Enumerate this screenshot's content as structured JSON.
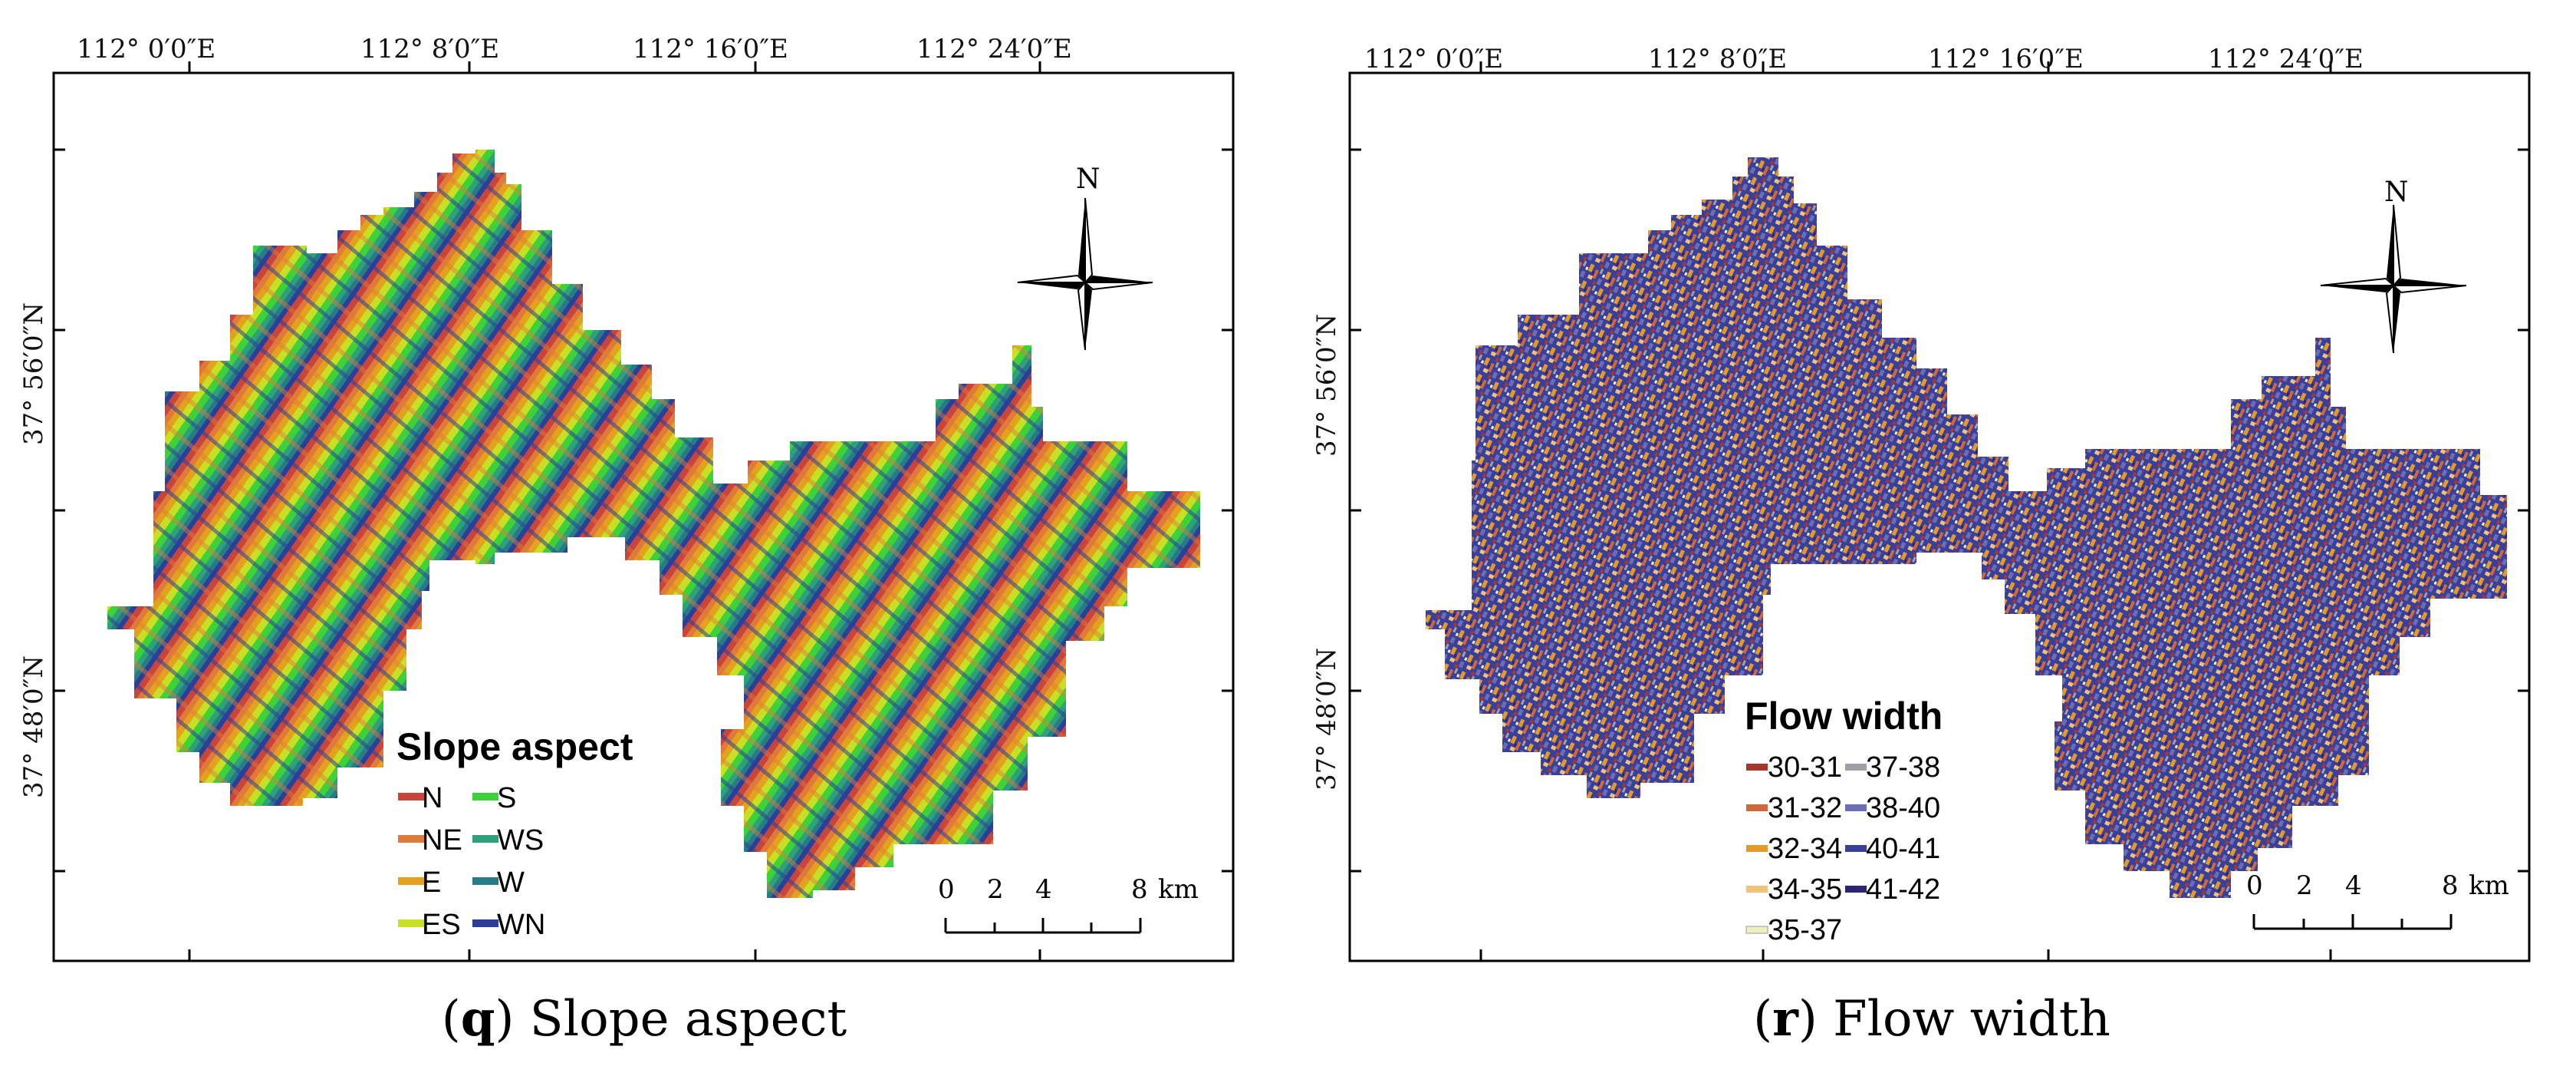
{
  "figure": {
    "panels": [
      {
        "id": "q",
        "caption_letter": "q",
        "caption_text": " Slope aspect",
        "lon_ticks": [
          "112° 0′0″E",
          "112° 8′0″E",
          "112° 16′0″E",
          "112° 24′0″E"
        ],
        "lat_ticks": [
          "37° 56′0″N",
          "37° 48′0″N"
        ],
        "north_label": "N",
        "scale_labels": [
          "0",
          "2",
          "4",
          "8",
          "km"
        ],
        "legend": {
          "title": "Slope aspect",
          "items": [
            {
              "label": "N",
              "color": "#c8453c"
            },
            {
              "label": "NE",
              "color": "#e07a3a"
            },
            {
              "label": "E",
              "color": "#e3a21d"
            },
            {
              "label": "ES",
              "color": "#c7df25"
            },
            {
              "label": "S",
              "color": "#3fd13a"
            },
            {
              "label": "WS",
              "color": "#2ea07a"
            },
            {
              "label": "W",
              "color": "#287a86"
            },
            {
              "label": "WN",
              "color": "#2b3f98"
            }
          ]
        }
      },
      {
        "id": "r",
        "caption_letter": "r",
        "caption_text": " Flow width",
        "lon_ticks": [
          "112° 0′0″E",
          "112° 8′0″E",
          "112° 16′0″E",
          "112° 24′0″E"
        ],
        "lat_ticks": [
          "37° 56′0″N",
          "37° 48′0″N"
        ],
        "north_label": "N",
        "scale_labels": [
          "0",
          "2",
          "4",
          "8",
          "km"
        ],
        "legend": {
          "title": "Flow width",
          "items": [
            {
              "label": "30-31",
              "color": "#a8362f"
            },
            {
              "label": "31-32",
              "color": "#d0693a"
            },
            {
              "label": "32-34",
              "color": "#e39a2a"
            },
            {
              "label": "34-35",
              "color": "#f0c27a"
            },
            {
              "label": "35-37",
              "color": "#eef0c0"
            },
            {
              "label": "37-38",
              "color": "#a0a0a8"
            },
            {
              "label": "38-40",
              "color": "#6a6fb5"
            },
            {
              "label": "40-41",
              "color": "#3a3f9a"
            },
            {
              "label": "41-42",
              "color": "#2a2570"
            }
          ]
        }
      }
    ]
  }
}
